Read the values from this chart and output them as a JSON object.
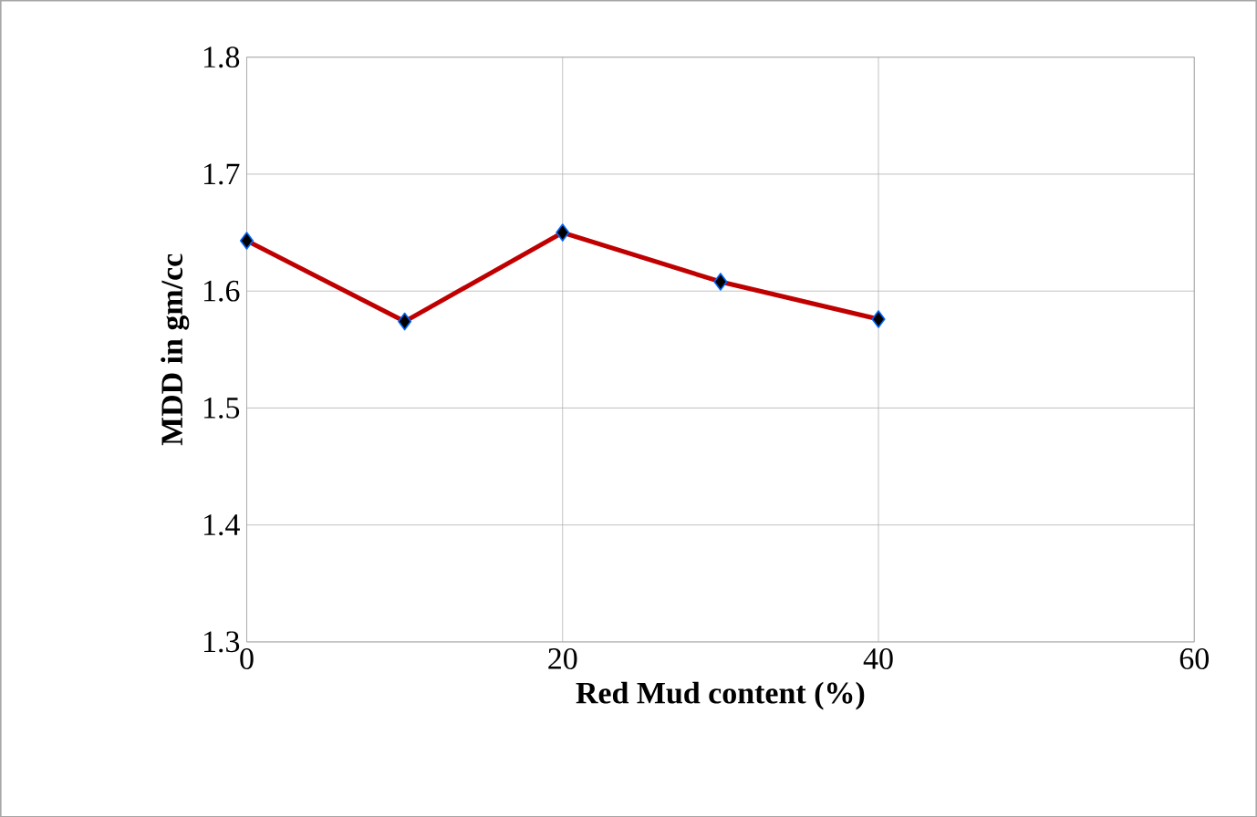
{
  "chart_data": {
    "type": "line",
    "xlabel": "Red Mud content (%)",
    "ylabel": "MDD in gm/cc",
    "x": [
      0,
      10,
      20,
      30,
      40
    ],
    "series": [
      {
        "color": "#c00000",
        "values": [
          1.643,
          1.574,
          1.65,
          1.608,
          1.576
        ]
      }
    ],
    "xlim": [
      0,
      60
    ],
    "xticks": [
      0,
      20,
      40,
      60
    ],
    "ylim": [
      1.3,
      1.8
    ],
    "yticks": [
      1.3,
      1.4,
      1.5,
      1.6,
      1.7,
      1.8
    ],
    "grid": true,
    "marker": "diamond",
    "line_style": "solid"
  }
}
